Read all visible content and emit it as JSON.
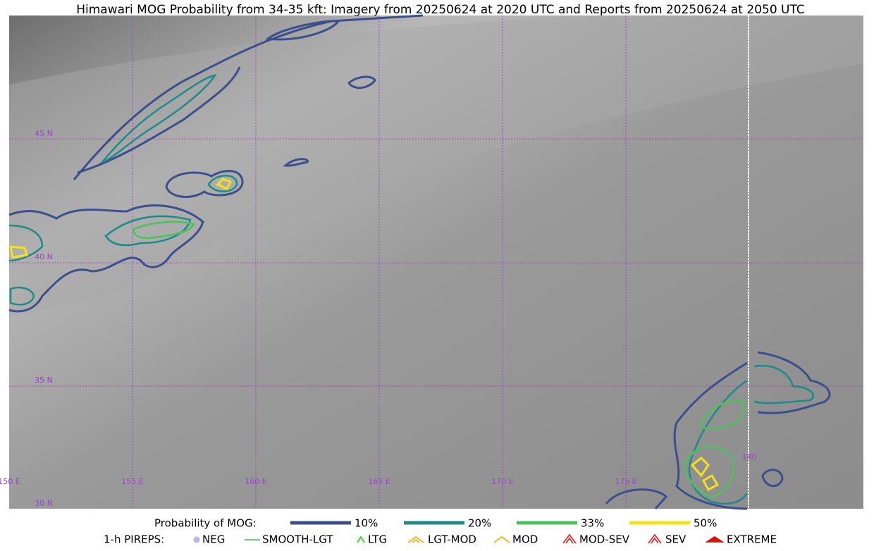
{
  "title": "Himawari MOG Probability from 34-35 kft: Imagery from 20250624 at 2020 UTC and Reports from 20250624 at 2050 UTC",
  "map": {
    "longitude_labels": [
      "150 E",
      "155 E",
      "160 E",
      "165 E",
      "170 E",
      "175 E",
      "180"
    ],
    "latitude_labels": [
      "45 N",
      "40 N",
      "35 N",
      "30 N"
    ]
  },
  "legend": {
    "probability": {
      "label": "Probability of MOG:",
      "items": [
        {
          "label": "10%",
          "color": "#3b4f8e"
        },
        {
          "label": "20%",
          "color": "#1f8a8a"
        },
        {
          "label": "33%",
          "color": "#4cc25c"
        },
        {
          "label": "50%",
          "color": "#f5e11a"
        }
      ]
    },
    "pireps": {
      "label": "1-h PIREPS:",
      "items": [
        {
          "label": "NEG",
          "color": "#b9b9f0"
        },
        {
          "label": "SMOOTH-LGT",
          "color": "#33cc33"
        },
        {
          "label": "LTG",
          "color": "#22dd22"
        },
        {
          "label": "LGT-MOD",
          "color": "#f0b020"
        },
        {
          "label": "MOD",
          "color": "#f0b020"
        },
        {
          "label": "MOD-SEV",
          "color": "#e03030"
        },
        {
          "label": "SEV",
          "color": "#e03030"
        },
        {
          "label": "EXTREME",
          "color": "#e01010"
        }
      ]
    }
  }
}
